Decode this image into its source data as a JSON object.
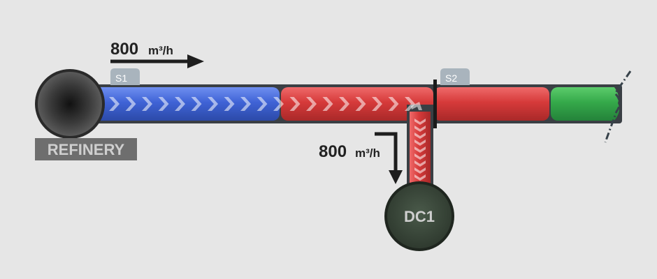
{
  "nodes": {
    "refinery": {
      "label": "REFINERY"
    },
    "dc1": {
      "label": "DC1"
    }
  },
  "sensors": [
    {
      "label": "S1"
    },
    {
      "label": "S2"
    }
  ],
  "flows": {
    "main": {
      "value": "800",
      "unit": "m³/h"
    },
    "branch": {
      "value": "800",
      "unit": "m³/h"
    }
  },
  "segments": [
    "blue",
    "red",
    "red",
    "green"
  ],
  "colors": {
    "background": "#e6e6e6",
    "pipe_outline": "#3a3f44",
    "blue": "#3f63d6",
    "red": "#d63a3a",
    "green": "#35a94a",
    "node_fill": "#3a3a3a",
    "dc_fill": "#3c4a3c",
    "sensor_tag": "#a9b4bd",
    "label_box": "#6e6e6e"
  }
}
